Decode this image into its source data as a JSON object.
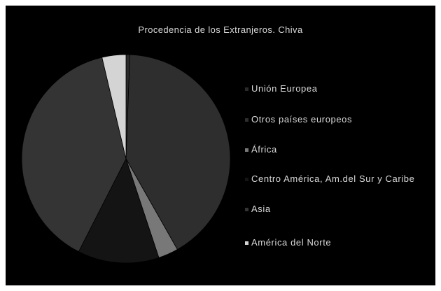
{
  "chart_data": {
    "type": "pie",
    "title": "Procedencia de los Extranjeros. Chiva",
    "categories": [
      " Unión Europea",
      "Otros países europeos",
      "África",
      "Centro América, Am.del Sur y Caribe",
      "Asia",
      "América del Norte"
    ],
    "values": [
      0.6,
      41.2,
      3.1,
      12.6,
      38.8,
      3.7
    ],
    "colors": [
      "#2a2a2a",
      "#2e2e2e",
      "#787878",
      "#141414",
      "#343434",
      "#d4d4d4"
    ],
    "start_angle_deg": 0,
    "legend_position": "right"
  }
}
